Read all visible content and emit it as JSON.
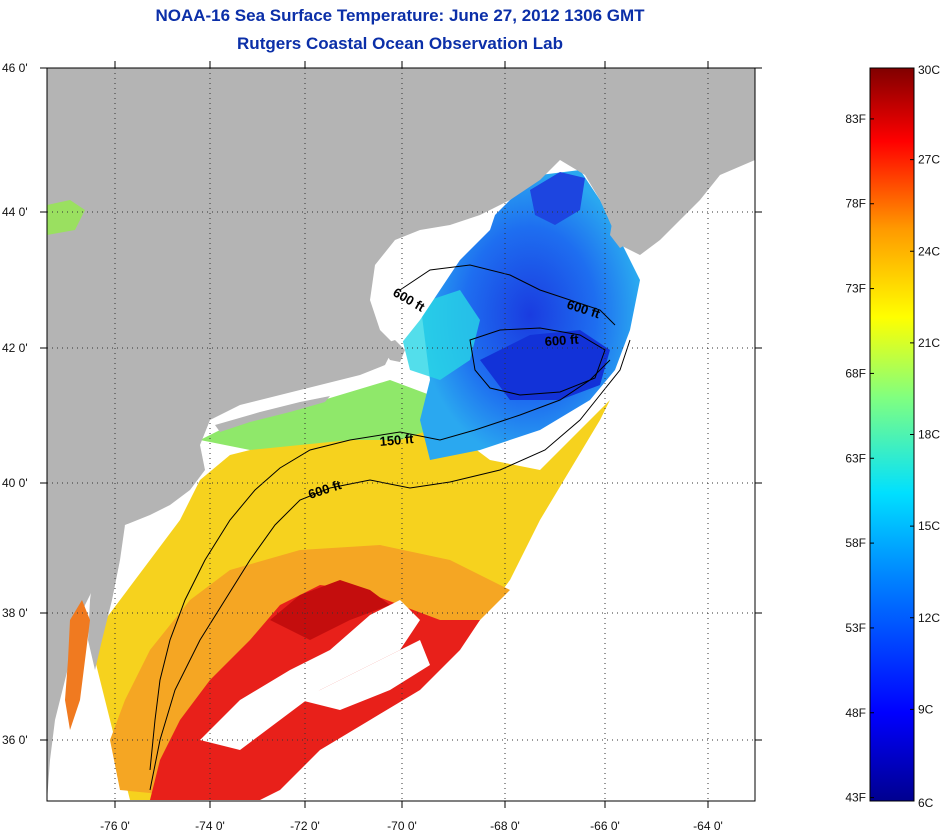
{
  "title": {
    "line1": "NOAA-16 Sea Surface Temperature:  June 27, 2012 1306 GMT",
    "line2": "Rutgers Coastal Ocean Observation Lab"
  },
  "axes": {
    "lat_labels": [
      "46 0'",
      "44 0'",
      "42 0'",
      "40 0'",
      "38 0'",
      "36 0'"
    ],
    "lon_labels": [
      "-76 0'",
      "-74 0'",
      "-72 0'",
      "-70 0'",
      "-68 0'",
      "-66 0'",
      "-64 0'"
    ]
  },
  "contours": {
    "label_600_gulf_west": "600 ft",
    "label_600_gulf_east": "600 ft",
    "label_600_georges": "600 ft",
    "label_150": "150 ft",
    "label_600_shelf": "600 ft"
  },
  "colorbar": {
    "fahrenheit": [
      "83F",
      "78F",
      "73F",
      "68F",
      "63F",
      "58F",
      "53F",
      "48F",
      "43F"
    ],
    "celsius": [
      "30C",
      "27C",
      "24C",
      "21C",
      "18C",
      "15C",
      "12C",
      "9C",
      "6C"
    ],
    "min_c": 6,
    "max_c": 30
  },
  "colors": {
    "land": "#b4b4b4",
    "cloud": "#ffffff",
    "title": "#0b2fa8"
  }
}
